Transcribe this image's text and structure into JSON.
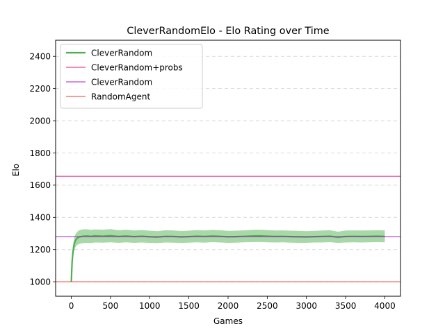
{
  "chart_data": {
    "type": "line",
    "title": "CleverRandomElo - Elo Rating over Time",
    "xlabel": "Games",
    "ylabel": "Elo",
    "xlim": [
      -200,
      4200
    ],
    "ylim": [
      910,
      2500
    ],
    "xticks": [
      0,
      500,
      1000,
      1500,
      2000,
      2500,
      3000,
      3500,
      4000
    ],
    "yticks": [
      1000,
      1200,
      1400,
      1600,
      1800,
      2000,
      2200,
      2400
    ],
    "grid": "y-dashed",
    "legend_position": "top-left",
    "series": [
      {
        "name": "CleverRandom",
        "kind": "line-with-band",
        "color": "#4caf50",
        "band_color": "#9ed39e",
        "x": [
          0,
          10,
          20,
          30,
          40,
          50,
          60,
          80,
          100,
          150,
          200,
          250,
          300,
          400,
          500,
          600,
          700,
          800,
          900,
          1000,
          1100,
          1200,
          1300,
          1400,
          1500,
          1600,
          1700,
          1800,
          1900,
          2000,
          2100,
          2200,
          2300,
          2400,
          2500,
          2600,
          2700,
          2800,
          2900,
          3000,
          3100,
          3200,
          3300,
          3400,
          3500,
          3600,
          3700,
          3800,
          3900,
          4000
        ],
        "values": [
          1000,
          1120,
          1180,
          1215,
          1238,
          1252,
          1262,
          1272,
          1278,
          1283,
          1284,
          1282,
          1285,
          1283,
          1286,
          1281,
          1284,
          1280,
          1283,
          1279,
          1277,
          1282,
          1281,
          1278,
          1280,
          1283,
          1281,
          1284,
          1282,
          1279,
          1280,
          1282,
          1284,
          1285,
          1283,
          1281,
          1282,
          1280,
          1279,
          1278,
          1280,
          1281,
          1283,
          1276,
          1281,
          1282,
          1281,
          1282,
          1283,
          1282
        ],
        "lower": [
          1000,
          1085,
          1140,
          1175,
          1198,
          1212,
          1222,
          1230,
          1235,
          1240,
          1242,
          1240,
          1244,
          1243,
          1245,
          1242,
          1245,
          1242,
          1244,
          1241,
          1240,
          1244,
          1243,
          1241,
          1243,
          1245,
          1243,
          1246,
          1244,
          1242,
          1243,
          1245,
          1246,
          1247,
          1245,
          1244,
          1245,
          1243,
          1242,
          1242,
          1244,
          1244,
          1246,
          1241,
          1244,
          1245,
          1244,
          1245,
          1246,
          1245
        ],
        "upper": [
          1000,
          1150,
          1215,
          1250,
          1275,
          1290,
          1300,
          1312,
          1320,
          1326,
          1326,
          1322,
          1325,
          1323,
          1327,
          1320,
          1323,
          1318,
          1321,
          1317,
          1314,
          1320,
          1319,
          1315,
          1317,
          1321,
          1319,
          1322,
          1320,
          1316,
          1317,
          1319,
          1322,
          1323,
          1321,
          1318,
          1319,
          1317,
          1316,
          1314,
          1316,
          1318,
          1320,
          1311,
          1318,
          1319,
          1318,
          1319,
          1320,
          1319
        ]
      },
      {
        "name": "CleverRandom+probs",
        "kind": "hline",
        "color": "#e0197a",
        "y": 1655
      },
      {
        "name": "CleverRandom",
        "kind": "hline",
        "color": "#a31fbf",
        "y": 1280
      },
      {
        "name": "RandomAgent",
        "kind": "hline",
        "color": "#ef3b2c",
        "y": 1000
      }
    ]
  }
}
